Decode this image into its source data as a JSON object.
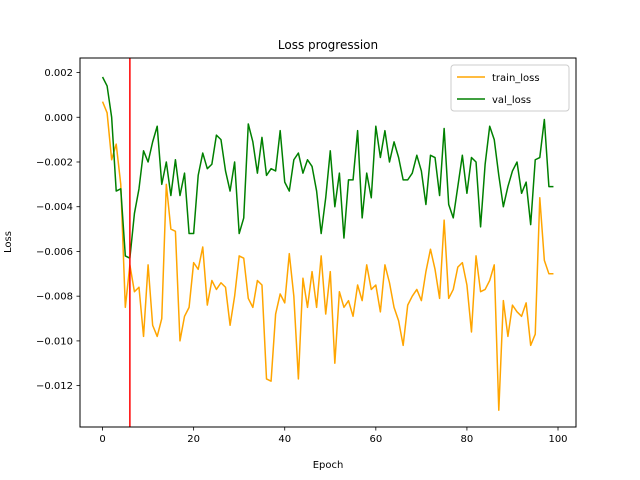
{
  "chart_data": {
    "type": "line",
    "title": "Loss progression",
    "xlabel": "Epoch",
    "ylabel": "Loss",
    "xlim": [
      -4.95,
      103.95
    ],
    "ylim": [
      -0.01385,
      0.00265
    ],
    "xticks": [
      0,
      20,
      40,
      60,
      80,
      100
    ],
    "yticks": [
      0.002,
      0.0,
      -0.002,
      -0.004,
      -0.006,
      -0.008,
      -0.01,
      -0.012
    ],
    "ytick_labels": [
      "0.002",
      "0.000",
      "−0.002",
      "−0.004",
      "−0.006",
      "−0.008",
      "−0.010",
      "−0.012"
    ],
    "xtick_labels": [
      "0",
      "20",
      "40",
      "60",
      "80",
      "100"
    ],
    "grid": false,
    "legend": "top-right",
    "vline": {
      "x": 6,
      "color": "#ff0000"
    },
    "series": [
      {
        "name": "train_loss",
        "color": "#ffa500",
        "x": [
          0,
          1,
          2,
          3,
          4,
          5,
          6,
          7,
          8,
          9,
          10,
          11,
          12,
          13,
          14,
          15,
          16,
          17,
          18,
          19,
          20,
          21,
          22,
          23,
          24,
          25,
          26,
          27,
          28,
          29,
          30,
          31,
          32,
          33,
          34,
          35,
          36,
          37,
          38,
          39,
          40,
          41,
          42,
          43,
          44,
          45,
          46,
          47,
          48,
          49,
          50,
          51,
          52,
          53,
          54,
          55,
          56,
          57,
          58,
          59,
          60,
          61,
          62,
          63,
          64,
          65,
          66,
          67,
          68,
          69,
          70,
          71,
          72,
          73,
          74,
          75,
          76,
          77,
          78,
          79,
          80,
          81,
          82,
          83,
          84,
          85,
          86,
          87,
          88,
          89,
          90,
          91,
          92,
          93,
          94,
          95,
          96,
          97,
          98,
          99
        ],
        "y": [
          0.0007,
          0.0002,
          -0.0019,
          -0.0012,
          -0.003,
          -0.0085,
          -0.0066,
          -0.0078,
          -0.0076,
          -0.0098,
          -0.0066,
          -0.0093,
          -0.0098,
          -0.009,
          -0.003,
          -0.005,
          -0.0051,
          -0.01,
          -0.0089,
          -0.0085,
          -0.0065,
          -0.0068,
          -0.0058,
          -0.0084,
          -0.0073,
          -0.0077,
          -0.0074,
          -0.0076,
          -0.0093,
          -0.008,
          -0.0062,
          -0.0063,
          -0.0081,
          -0.0085,
          -0.0073,
          -0.0075,
          -0.0117,
          -0.0118,
          -0.0088,
          -0.0079,
          -0.0083,
          -0.0061,
          -0.008,
          -0.0117,
          -0.0072,
          -0.0085,
          -0.0069,
          -0.0085,
          -0.0062,
          -0.0088,
          -0.0069,
          -0.011,
          -0.0078,
          -0.0085,
          -0.0082,
          -0.0089,
          -0.0075,
          -0.0082,
          -0.0066,
          -0.0077,
          -0.0075,
          -0.0087,
          -0.0066,
          -0.0074,
          -0.0085,
          -0.0091,
          -0.0102,
          -0.0084,
          -0.008,
          -0.0077,
          -0.0082,
          -0.0069,
          -0.0059,
          -0.0068,
          -0.0081,
          -0.0046,
          -0.0081,
          -0.0077,
          -0.0067,
          -0.0065,
          -0.0075,
          -0.0096,
          -0.0062,
          -0.0078,
          -0.0077,
          -0.0073,
          -0.0066,
          -0.0131,
          -0.0082,
          -0.0098,
          -0.0084,
          -0.0087,
          -0.0089,
          -0.0083,
          -0.0102,
          -0.0097,
          -0.0036,
          -0.0064,
          -0.007,
          -0.007
        ]
      },
      {
        "name": "val_loss",
        "color": "#008000",
        "x": [
          0,
          1,
          2,
          3,
          4,
          5,
          6,
          7,
          8,
          9,
          10,
          11,
          12,
          13,
          14,
          15,
          16,
          17,
          18,
          19,
          20,
          21,
          22,
          23,
          24,
          25,
          26,
          27,
          28,
          29,
          30,
          31,
          32,
          33,
          34,
          35,
          36,
          37,
          38,
          39,
          40,
          41,
          42,
          43,
          44,
          45,
          46,
          47,
          48,
          49,
          50,
          51,
          52,
          53,
          54,
          55,
          56,
          57,
          58,
          59,
          60,
          61,
          62,
          63,
          64,
          65,
          66,
          67,
          68,
          69,
          70,
          71,
          72,
          73,
          74,
          75,
          76,
          77,
          78,
          79,
          80,
          81,
          82,
          83,
          84,
          85,
          86,
          87,
          88,
          89,
          90,
          91,
          92,
          93,
          94,
          95,
          96,
          97,
          98,
          99
        ],
        "y": [
          0.0018,
          0.0014,
          0.0,
          -0.0033,
          -0.0032,
          -0.0062,
          -0.0063,
          -0.0043,
          -0.0032,
          -0.0015,
          -0.002,
          -0.0011,
          -0.0004,
          -0.003,
          -0.002,
          -0.0035,
          -0.0019,
          -0.0035,
          -0.0025,
          -0.0052,
          -0.0052,
          -0.0026,
          -0.0016,
          -0.0023,
          -0.0021,
          -0.0008,
          -0.001,
          -0.0024,
          -0.0033,
          -0.002,
          -0.0052,
          -0.0045,
          -0.0003,
          -0.0011,
          -0.0025,
          -0.0009,
          -0.0026,
          -0.0023,
          -0.0024,
          -0.0006,
          -0.0029,
          -0.0033,
          -0.0019,
          -0.0016,
          -0.0025,
          -0.0019,
          -0.0022,
          -0.0033,
          -0.0052,
          -0.0036,
          -0.0015,
          -0.004,
          -0.0025,
          -0.0054,
          -0.0028,
          -0.0028,
          -0.0006,
          -0.0045,
          -0.0025,
          -0.0036,
          -0.0004,
          -0.0018,
          -0.0006,
          -0.002,
          -0.0011,
          -0.0018,
          -0.0028,
          -0.0028,
          -0.0025,
          -0.0017,
          -0.0024,
          -0.0039,
          -0.0017,
          -0.0018,
          -0.0035,
          -0.0005,
          -0.0039,
          -0.0045,
          -0.0031,
          -0.0017,
          -0.0034,
          -0.0018,
          -0.002,
          -0.0049,
          -0.0021,
          -0.0004,
          -0.001,
          -0.0026,
          -0.004,
          -0.0031,
          -0.0024,
          -0.002,
          -0.0034,
          -0.0029,
          -0.0048,
          -0.0019,
          -0.0018,
          -0.0001,
          -0.0031,
          -0.0031
        ]
      }
    ]
  }
}
